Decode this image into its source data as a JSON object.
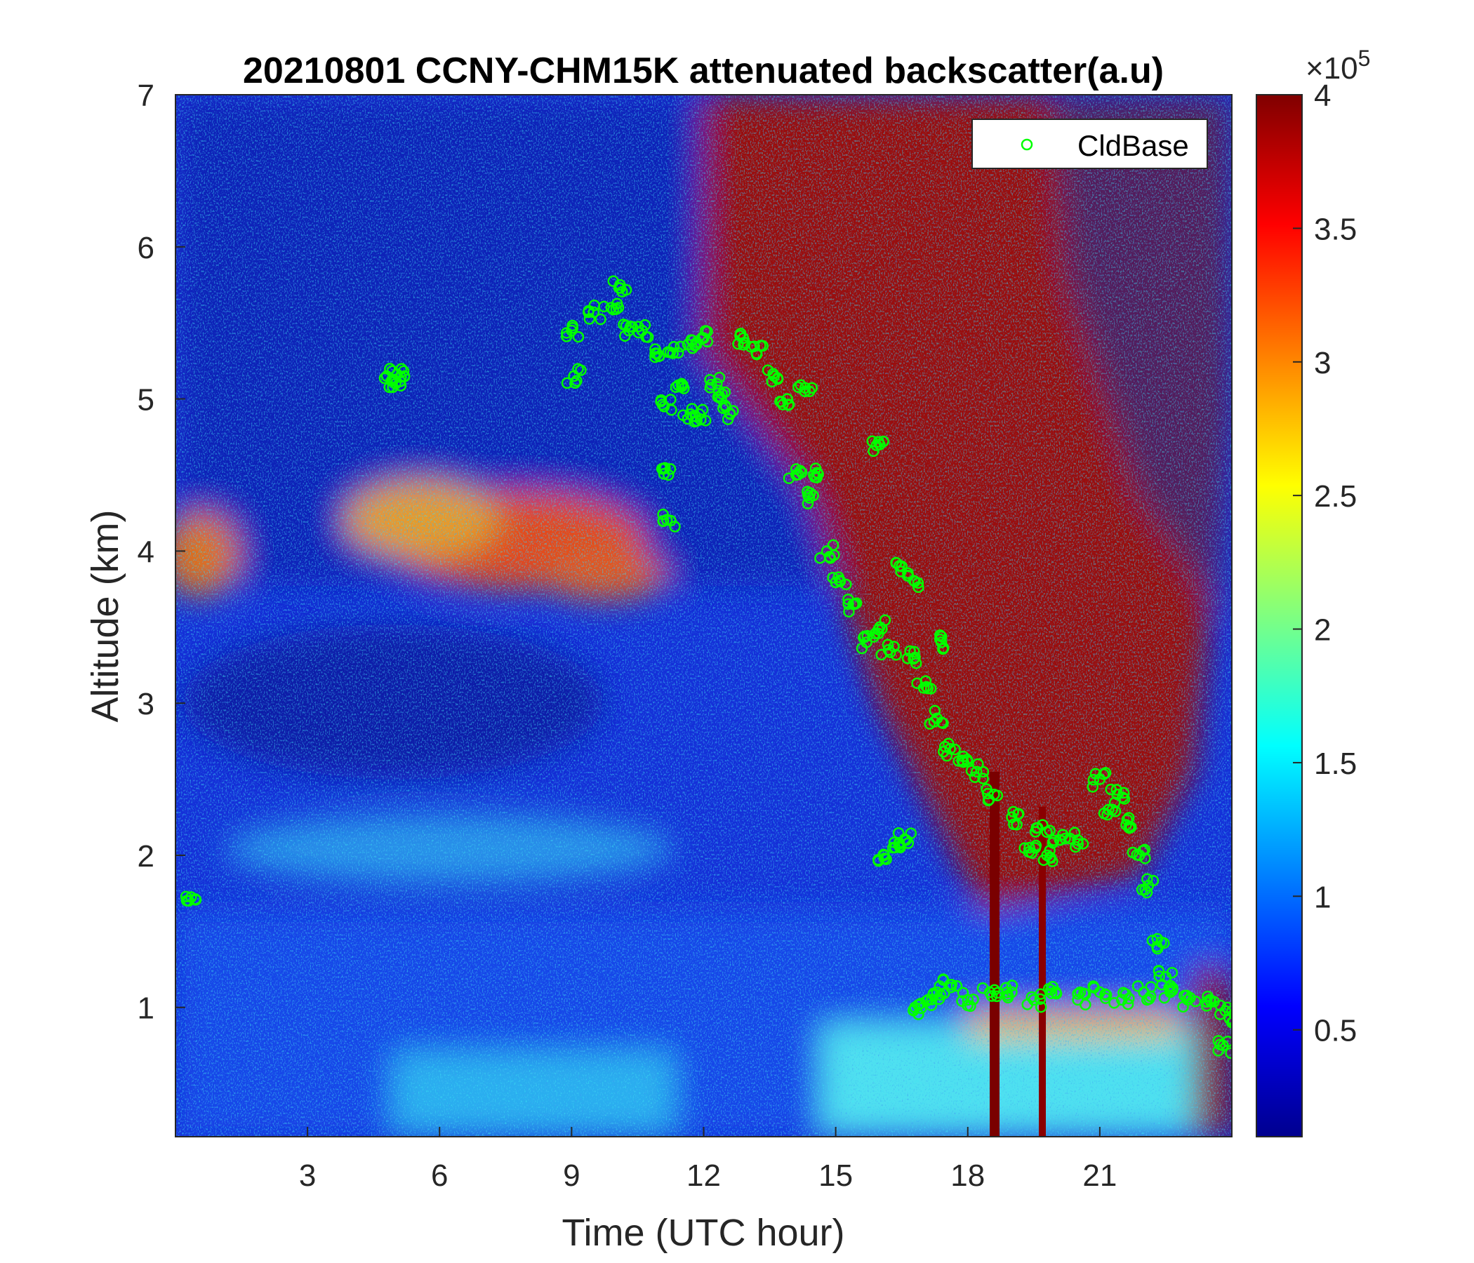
{
  "chart_data": {
    "type": "heatmap",
    "title": "20210801 CCNY-CHM15K attenuated backscatter(a.u)",
    "xlabel": "Time (UTC hour)",
    "ylabel": "Altitude (km)",
    "xlim": [
      0,
      24
    ],
    "ylim": [
      0.15,
      7
    ],
    "x_ticks": [
      3,
      6,
      9,
      12,
      15,
      18,
      21
    ],
    "y_ticks": [
      1,
      2,
      3,
      4,
      5,
      6,
      7
    ],
    "colorbar": {
      "colormap": "jet",
      "clim": [
        0.1,
        4
      ],
      "ticks": [
        0.5,
        1,
        1.5,
        2,
        2.5,
        3,
        3.5,
        4
      ],
      "exponent_label": "×10",
      "exponent_power": "5"
    },
    "legend": {
      "location": "top-right",
      "entries": [
        "CldBase"
      ],
      "marker_color": "#00ff00"
    },
    "series": [
      {
        "name": "CldBase",
        "marker": "circle",
        "color": "#00ff00",
        "x": [
          0.3,
          4.8,
          5.0,
          5.2,
          9.0,
          9.05,
          9.5,
          9.9,
          10.1,
          10.3,
          10.6,
          10.9,
          11.1,
          11.2,
          11.25,
          11.3,
          11.5,
          11.7,
          11.9,
          12.0,
          12.3,
          12.6,
          12.9,
          13.2,
          13.6,
          13.9,
          14.3,
          14.5,
          14.1,
          14.4,
          14.8,
          15.1,
          15.4,
          15.7,
          16.0,
          16.2,
          16.5,
          16.8,
          17.0,
          17.3,
          17.6,
          17.9,
          18.2,
          18.6,
          19.0,
          19.4,
          19.7,
          19.8,
          20.1,
          20.5,
          21.0,
          21.2,
          21.4,
          21.6,
          21.9,
          22.1,
          22.3,
          22.5,
          16.1,
          16.3,
          16.6,
          16.8,
          17.4,
          16.8,
          17.1,
          17.3,
          17.6,
          18.0,
          18.5,
          19.0,
          19.5,
          20.0,
          20.5,
          21.0,
          21.5,
          22.0,
          22.6,
          23.0,
          23.5,
          23.9,
          24.0,
          23.8,
          11.8,
          12.4,
          16.0
        ],
        "y": [
          1.7,
          5.15,
          5.1,
          5.15,
          5.45,
          5.15,
          5.57,
          5.6,
          5.75,
          5.45,
          5.45,
          5.3,
          4.95,
          4.5,
          4.2,
          5.3,
          5.1,
          4.9,
          4.9,
          5.4,
          5.1,
          4.9,
          5.4,
          5.3,
          5.15,
          5.0,
          5.05,
          4.5,
          4.5,
          4.35,
          4.0,
          3.8,
          3.65,
          3.4,
          3.5,
          3.35,
          3.9,
          3.3,
          3.1,
          2.9,
          2.7,
          2.65,
          2.55,
          2.4,
          2.25,
          2.05,
          2.2,
          2.0,
          2.1,
          2.1,
          2.5,
          2.3,
          2.4,
          2.2,
          2.0,
          1.8,
          1.4,
          1.2,
          2.0,
          2.05,
          2.1,
          3.8,
          3.4,
          1.0,
          1.05,
          1.1,
          1.15,
          1.05,
          1.1,
          1.1,
          1.05,
          1.1,
          1.05,
          1.1,
          1.05,
          1.1,
          1.1,
          1.05,
          1.05,
          1.0,
          0.9,
          0.75,
          5.35,
          5.0,
          4.7
        ]
      }
    ]
  }
}
